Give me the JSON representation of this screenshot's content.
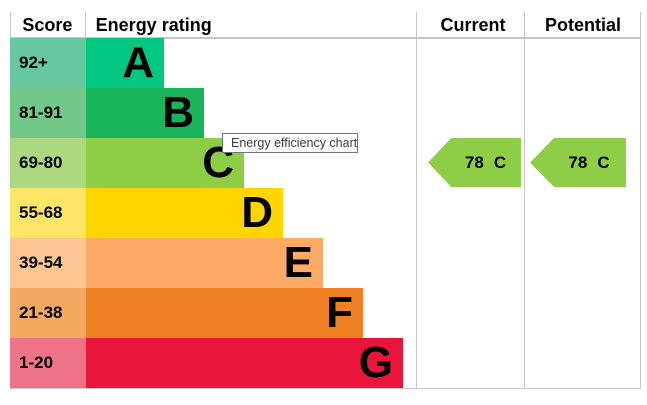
{
  "header": {
    "score": "Score",
    "energy_rating": "Energy rating",
    "current": "Current",
    "potential": "Potential"
  },
  "bands": [
    {
      "score": "92+",
      "letter": "A",
      "color": "#00c781",
      "tint": "#66c7a1"
    },
    {
      "score": "81-91",
      "letter": "B",
      "color": "#19b459",
      "tint": "#72c889"
    },
    {
      "score": "69-80",
      "letter": "C",
      "color": "#8dce46",
      "tint": "#acd97f"
    },
    {
      "score": "55-68",
      "letter": "D",
      "color": "#ffd500",
      "tint": "#ffe567"
    },
    {
      "score": "39-54",
      "letter": "E",
      "color": "#fcaa65",
      "tint": "#fcc693"
    },
    {
      "score": "21-38",
      "letter": "F",
      "color": "#ef8023",
      "tint": "#f3a960"
    },
    {
      "score": "1-20",
      "letter": "G",
      "color": "#e9153b",
      "tint": "#ef7388"
    }
  ],
  "current": {
    "value": "78",
    "letter": "C",
    "color": "#8dce46"
  },
  "potential": {
    "value": "78",
    "letter": "C",
    "color": "#8dce46"
  },
  "tooltip": {
    "text": "Energy efficiency chart",
    "border_color": "#767676"
  },
  "chart_data": {
    "type": "bar",
    "title": "Energy efficiency chart",
    "orientation": "horizontal",
    "categories": [
      "A",
      "B",
      "C",
      "D",
      "E",
      "F",
      "G"
    ],
    "score_ranges": [
      "92+",
      "81-91",
      "69-80",
      "55-68",
      "39-54",
      "21-38",
      "1-20"
    ],
    "relative_bar_lengths": [
      1,
      2,
      3,
      4,
      5,
      6,
      7
    ],
    "band_colors": [
      "#00c781",
      "#19b459",
      "#8dce46",
      "#ffd500",
      "#fcaa65",
      "#ef8023",
      "#e9153b"
    ],
    "columns": [
      "Score",
      "Energy rating",
      "Current",
      "Potential"
    ],
    "current_rating": {
      "score": 78,
      "band": "C"
    },
    "potential_rating": {
      "score": 78,
      "band": "C"
    },
    "grid": false,
    "legend": false
  }
}
